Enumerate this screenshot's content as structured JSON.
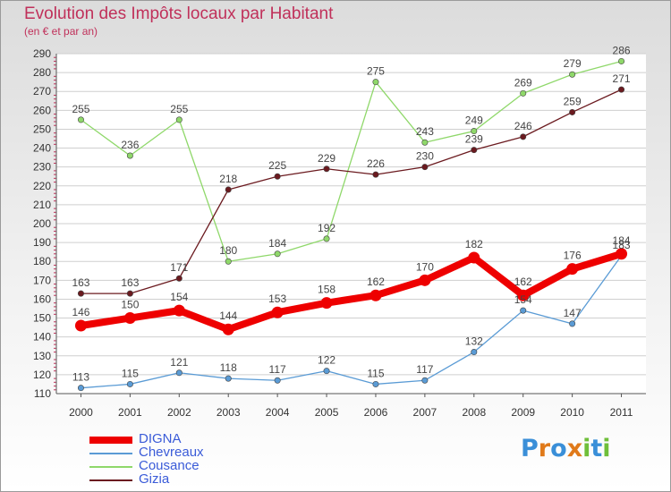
{
  "header": {
    "title": "Evolution des Impôts locaux par Habitant",
    "subtitle": "(en € et par an)"
  },
  "colors": {
    "title": "#c0305a",
    "DIGNA": "#ee0000",
    "Chevreaux": "#5a9bd5",
    "Cousance": "#8fd86a",
    "Gizia": "#6b1a1f"
  },
  "logo": {
    "text": "Proxiti"
  },
  "chart_data": {
    "type": "line",
    "title": "Evolution des Impôts locaux par Habitant",
    "subtitle": "(en € et par an)",
    "xlabel": "",
    "ylabel": "",
    "x": [
      "2000",
      "2001",
      "2002",
      "2003",
      "2004",
      "2005",
      "2006",
      "2007",
      "2008",
      "2009",
      "2010",
      "2011"
    ],
    "ylim": [
      110,
      290
    ],
    "yticks": [
      110,
      120,
      130,
      140,
      150,
      160,
      170,
      180,
      190,
      200,
      210,
      220,
      230,
      240,
      250,
      260,
      270,
      280,
      290
    ],
    "grid": "horizontal",
    "legend_position": "bottom-left",
    "series": [
      {
        "name": "DIGNA",
        "values": [
          146,
          150,
          154,
          144,
          153,
          158,
          162,
          170,
          182,
          162,
          176,
          184
        ],
        "color": "#ee0000",
        "emphasis": true
      },
      {
        "name": "Chevreaux",
        "values": [
          113,
          115,
          121,
          118,
          117,
          122,
          115,
          117,
          132,
          154,
          147,
          183
        ],
        "color": "#5a9bd5"
      },
      {
        "name": "Cousance",
        "values": [
          255,
          236,
          255,
          180,
          184,
          192,
          275,
          243,
          249,
          269,
          279,
          286
        ],
        "color": "#8fd86a"
      },
      {
        "name": "Gizia",
        "values": [
          163,
          163,
          171,
          218,
          225,
          229,
          226,
          230,
          239,
          246,
          259,
          271
        ],
        "color": "#6b1a1f"
      }
    ]
  }
}
